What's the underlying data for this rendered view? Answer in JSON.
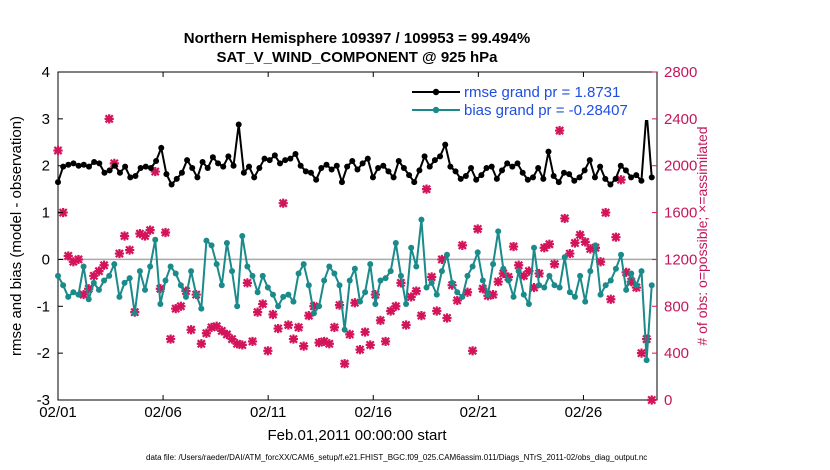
{
  "chart_data": {
    "type": "line",
    "title": "Northern Hemisphere 109397 / 109953 = 99.494%",
    "subtitle": "SAT_V_WIND_COMPONENT @ 925 hPa",
    "xlabel": "Feb.01,2011 00:00:00 start",
    "ylabel": "rmse and bias (model - observation)",
    "y2label": "# of obs: o=possible; ×=assimilated",
    "footnote": "data file: /Users/raeder/DAI/ATM_forcXX/CAM6_setup/f.e21.FHIST_BGC.f09_025.CAM6assim.011/Diags_NTrS_2011-02/obs_diag_output.nc",
    "x_tick_labels": [
      "02/01",
      "02/06",
      "02/11",
      "02/16",
      "02/21",
      "02/26"
    ],
    "x_tick_days": [
      0,
      5,
      10,
      15,
      20,
      25
    ],
    "xlim_days": [
      0,
      28.5
    ],
    "ylim": [
      -3,
      4
    ],
    "y_ticks": [
      -3,
      -2,
      -1,
      0,
      1,
      2,
      3,
      4
    ],
    "y2lim": [
      0,
      2800
    ],
    "y2_ticks": [
      0,
      400,
      800,
      1200,
      1600,
      2000,
      2400,
      2800
    ],
    "grid": false,
    "legend_position": "top-right",
    "colors": {
      "rmse": "#000000",
      "bias": "#1a8a8a",
      "obs": "#d4145a",
      "zero_line": "#aaaaaa"
    },
    "series": [
      {
        "name": "rmse grand pr = 1.8731",
        "color": "#000000",
        "values": [
          1.65,
          1.98,
          2.02,
          2.05,
          2.0,
          2.02,
          1.98,
          2.08,
          2.05,
          1.85,
          1.9,
          2.0,
          1.85,
          1.98,
          1.75,
          1.78,
          1.95,
          1.98,
          1.95,
          2.1,
          2.38,
          1.82,
          1.6,
          1.72,
          1.85,
          2.12,
          1.95,
          1.75,
          2.08,
          1.95,
          2.18,
          2.05,
          1.98,
          2.2,
          2.0,
          2.88,
          1.85,
          1.98,
          1.75,
          1.95,
          2.15,
          2.12,
          2.22,
          2.05,
          2.12,
          2.15,
          2.25,
          2.0,
          1.88,
          1.85,
          1.7,
          1.95,
          2.02,
          1.92,
          2.0,
          1.65,
          1.98,
          2.1,
          1.92,
          2.05,
          2.15,
          1.75,
          1.95,
          2.0,
          1.88,
          1.75,
          2.1,
          1.95,
          1.8,
          1.65,
          1.9,
          2.2,
          1.98,
          2.12,
          2.2,
          2.45,
          1.98,
          1.88,
          1.72,
          1.78,
          1.95,
          1.7,
          1.8,
          1.95,
          1.98,
          1.72,
          1.9,
          2.05,
          1.98,
          2.05,
          1.85,
          1.7,
          1.75,
          1.95,
          1.72,
          2.3,
          1.78,
          1.65,
          1.85,
          1.82,
          1.68,
          1.75,
          1.9,
          2.12,
          1.75,
          1.98,
          1.72,
          1.6,
          1.72,
          2.0,
          1.9,
          1.75,
          1.8,
          1.68,
          3.15,
          1.75
        ]
      },
      {
        "name": "bias grand pr = -0.28407",
        "color": "#1a8a8a",
        "values": [
          -0.35,
          -0.55,
          -0.8,
          -0.7,
          -0.75,
          -0.15,
          -0.85,
          -0.5,
          -0.65,
          -0.45,
          -0.35,
          -0.1,
          -0.8,
          -0.5,
          -0.4,
          -1.15,
          -0.25,
          -0.65,
          -0.15,
          0.42,
          -0.95,
          -0.45,
          -0.15,
          -0.3,
          -0.55,
          -0.8,
          -0.25,
          -0.75,
          -1.05,
          0.4,
          0.3,
          -0.1,
          -0.55,
          0.35,
          -0.25,
          -1.0,
          0.5,
          -0.15,
          -0.35,
          -0.7,
          -0.35,
          -0.6,
          -0.75,
          -1.0,
          -0.8,
          -0.75,
          -0.9,
          -0.3,
          -0.1,
          -0.55,
          -1.15,
          -1.0,
          -0.45,
          -0.15,
          -0.3,
          -0.55,
          -1.5,
          -0.45,
          -0.2,
          -0.9,
          -0.7,
          -0.1,
          -0.95,
          -0.45,
          -0.4,
          -0.25,
          0.35,
          -0.35,
          -0.95,
          0.25,
          -0.15,
          0.85,
          -0.6,
          -0.5,
          -0.75,
          -0.25,
          0.1,
          -0.5,
          -0.7,
          -0.8,
          -0.35,
          -0.15,
          0.15,
          -0.45,
          -0.75,
          -0.1,
          0.6,
          -0.2,
          -0.45,
          -0.8,
          -0.25,
          -0.75,
          -0.95,
          0.25,
          -0.55,
          -0.6,
          -0.35,
          -0.55,
          -0.6,
          0.05,
          -0.7,
          -0.8,
          -0.35,
          -0.9,
          -0.25,
          0.3,
          -0.75,
          -0.55,
          -0.45,
          -0.2,
          0.1,
          -0.65,
          -0.3,
          -0.55,
          -0.25,
          -2.15,
          -0.55
        ]
      }
    ],
    "obs_possible": [
      2130,
      1600,
      1230,
      1180,
      1200,
      900,
      950,
      1060,
      1100,
      1150,
      2400,
      2020,
      1250,
      1400,
      1280,
      750,
      1420,
      1400,
      1450,
      1950,
      950,
      1430,
      520,
      780,
      800,
      930,
      600,
      900,
      480,
      570,
      620,
      630,
      590,
      560,
      520,
      480,
      470,
      1000,
      500,
      750,
      820,
      420,
      730,
      610,
      1680,
      640,
      520,
      620,
      460,
      720,
      800,
      490,
      500,
      480,
      620,
      810,
      310,
      560,
      830,
      430,
      580,
      470,
      900,
      680,
      500,
      760,
      800,
      1000,
      640,
      880,
      930,
      720,
      1800,
      1050,
      760,
      1200,
      700,
      980,
      850,
      1320,
      920,
      420,
      1460,
      950,
      890,
      900,
      1010,
      1080,
      1050,
      1310,
      1150,
      1060,
      1100,
      960,
      1080,
      1300,
      1330,
      1160,
      2300,
      1550,
      1250,
      1340,
      1410,
      1350,
      1290,
      1300,
      1180,
      1600,
      860,
      1390,
      1880,
      1090,
      1010,
      960,
      400,
      520,
      0
    ]
  }
}
